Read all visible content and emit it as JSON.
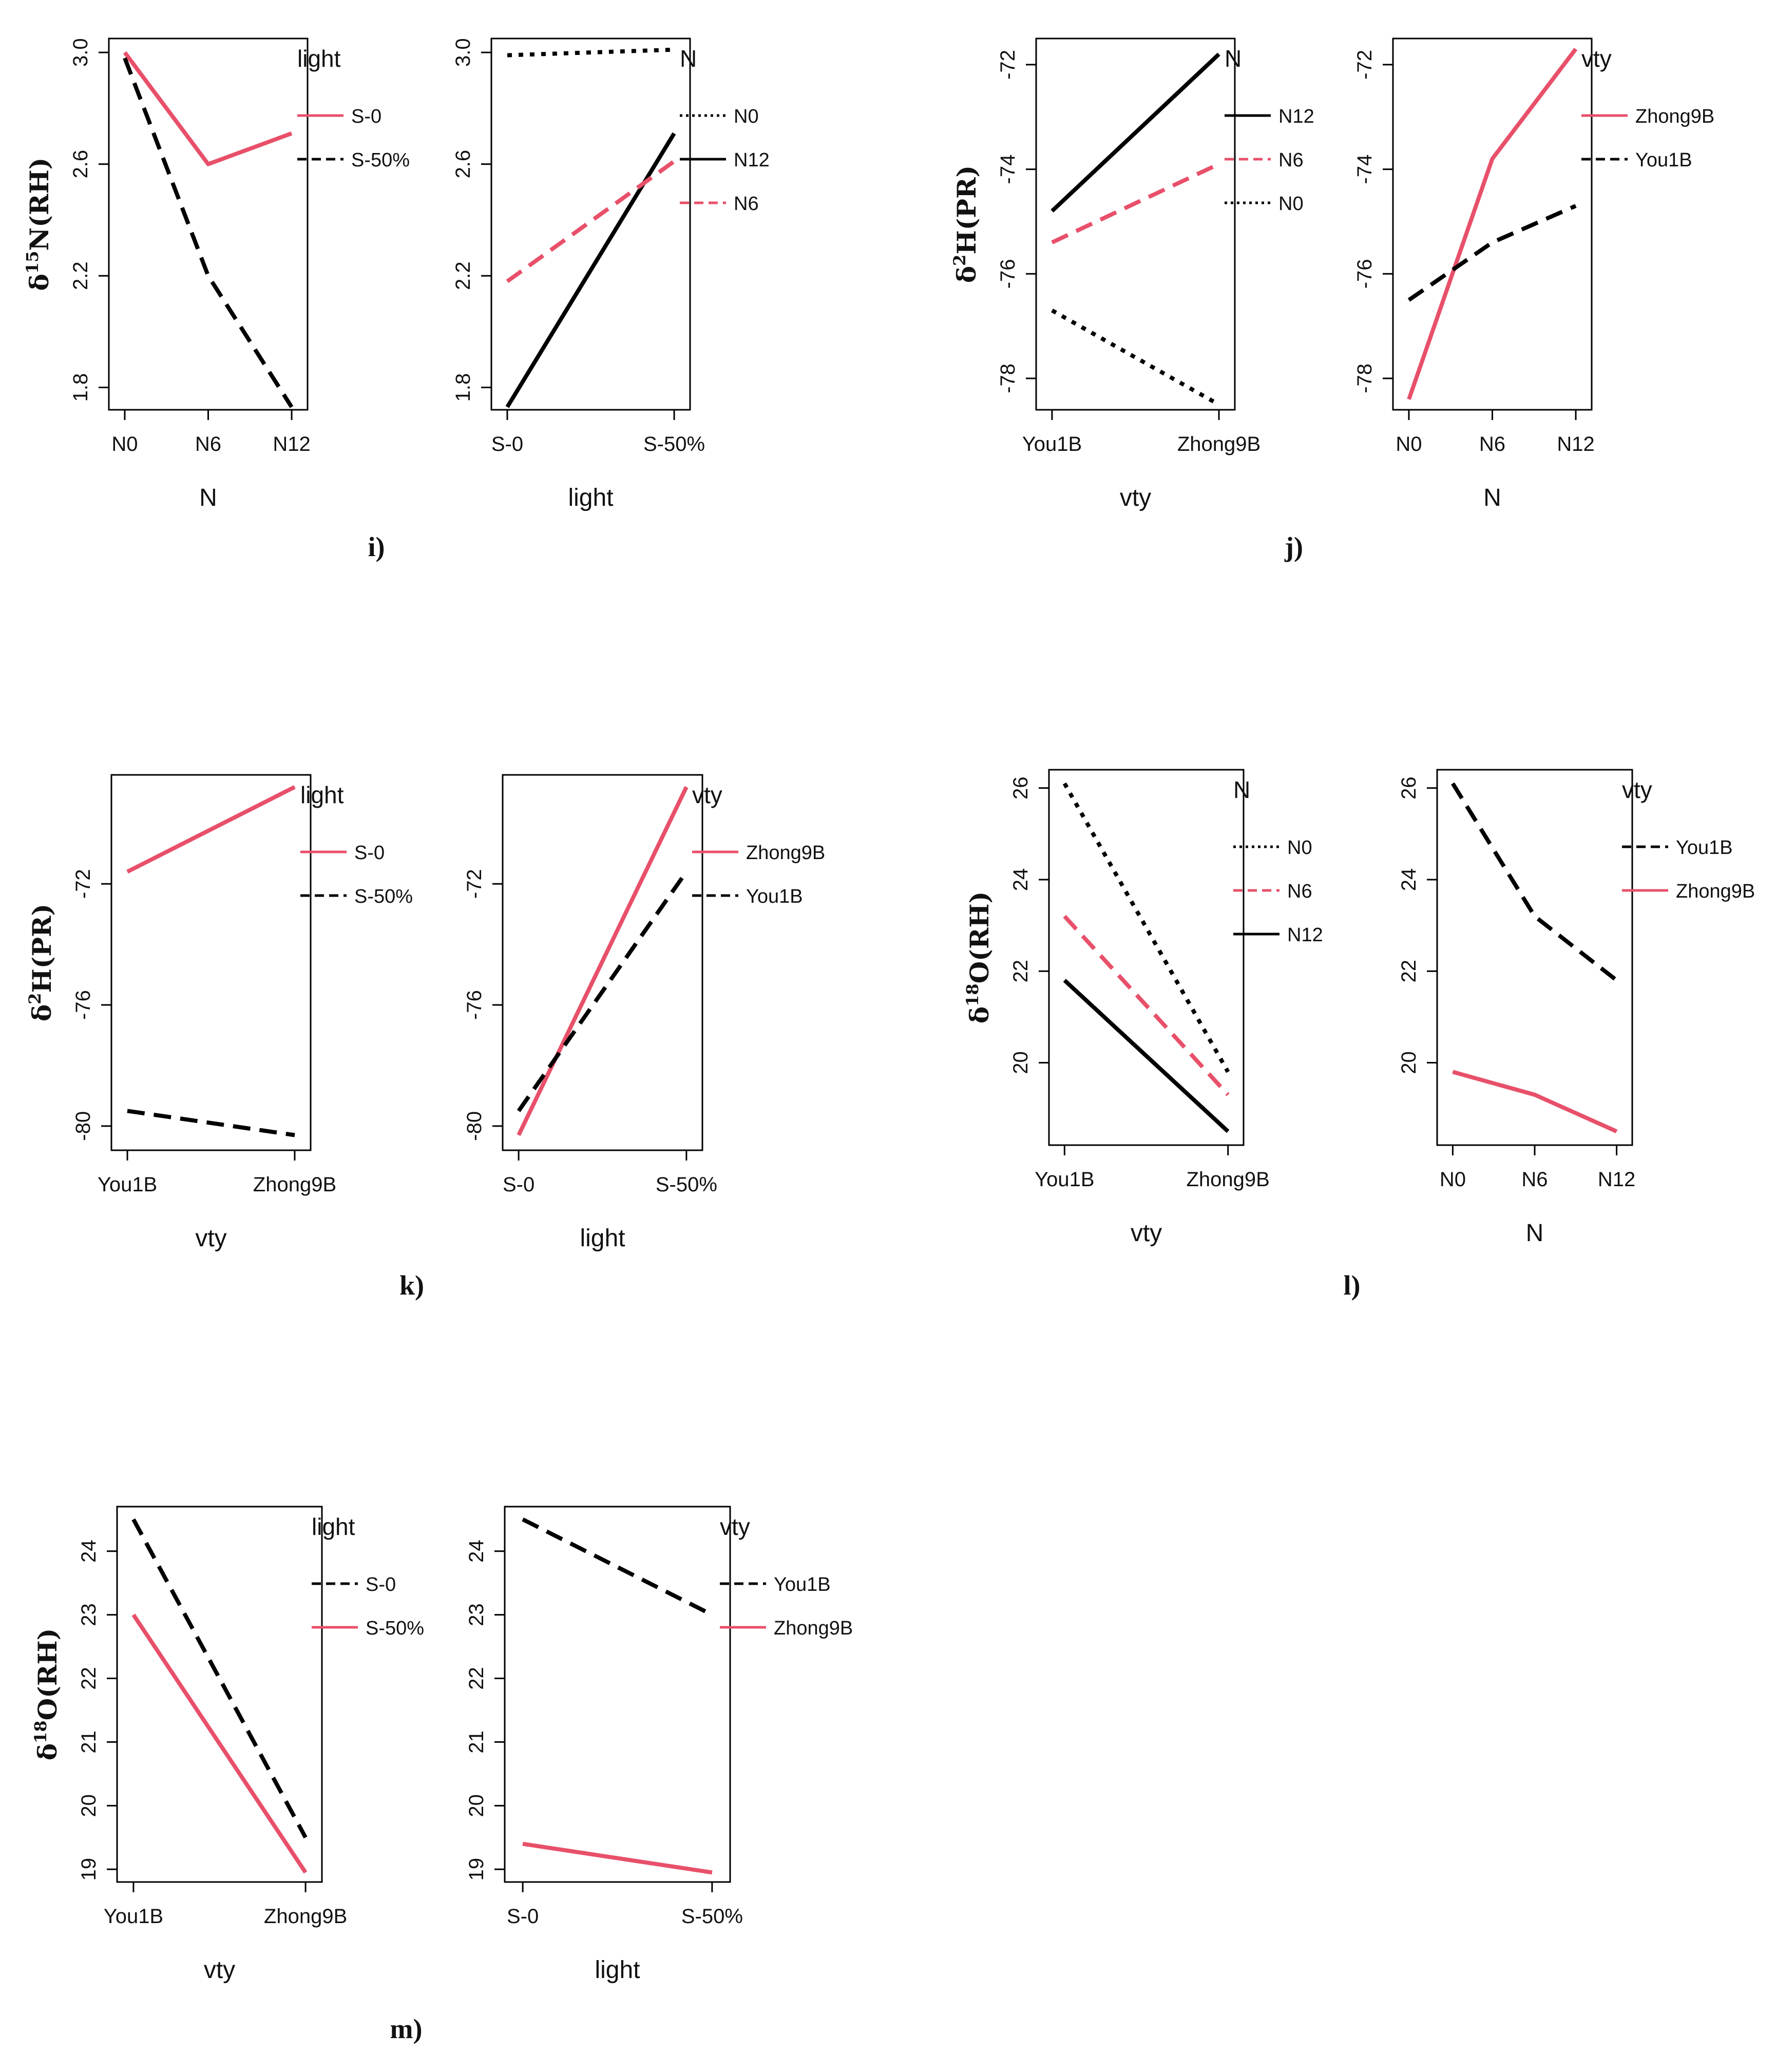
{
  "colors": {
    "black": "#000000",
    "red": "#E8506A"
  },
  "panel_labels": [
    "i)",
    "j)",
    "k)",
    "l)",
    "m)"
  ],
  "chart_data": [
    {
      "type": "line",
      "panel": "i)",
      "xlabel": "N",
      "ylabel": "δ15N(RH)",
      "categories": [
        "N0",
        "N6",
        "N12"
      ],
      "ylim": [
        1.72,
        3.05
      ],
      "yticks": [
        1.8,
        2.2,
        2.6,
        3.0
      ],
      "ytick_labels": [
        "1.8",
        "2.2",
        "2.6",
        "3.0"
      ],
      "legend_title": "light",
      "series": [
        {
          "name": "S-0",
          "color": "red",
          "dash": "solid",
          "values": [
            3.0,
            2.6,
            2.71
          ]
        },
        {
          "name": "S-50%",
          "color": "black",
          "dash": "dashed",
          "values": [
            2.98,
            2.2,
            1.73
          ]
        }
      ]
    },
    {
      "type": "line",
      "panel": "i)",
      "xlabel": "light",
      "ylabel": "",
      "categories": [
        "S-0",
        "S-50%"
      ],
      "ylim": [
        1.72,
        3.05
      ],
      "yticks": [
        1.8,
        2.2,
        2.6,
        3.0
      ],
      "ytick_labels": [
        "1.8",
        "2.2",
        "2.6",
        "3.0"
      ],
      "legend_title": "N",
      "series": [
        {
          "name": "N0",
          "color": "black",
          "dash": "dotted",
          "values": [
            2.99,
            3.01
          ]
        },
        {
          "name": "N12",
          "color": "black",
          "dash": "solid",
          "values": [
            1.73,
            2.71
          ]
        },
        {
          "name": "N6",
          "color": "red",
          "dash": "dashed",
          "values": [
            2.18,
            2.61
          ]
        }
      ]
    },
    {
      "type": "line",
      "panel": "j)",
      "xlabel": "vty",
      "ylabel": "δ2H(PR)",
      "categories": [
        "You1B",
        "Zhong9B"
      ],
      "ylim": [
        -78.6,
        -71.5
      ],
      "yticks": [
        -78,
        -76,
        -74,
        -72
      ],
      "ytick_labels": [
        "-78",
        "-76",
        "-74",
        "-72"
      ],
      "legend_title": "N",
      "series": [
        {
          "name": "N12",
          "color": "black",
          "dash": "solid",
          "values": [
            -74.8,
            -71.8
          ]
        },
        {
          "name": "N6",
          "color": "red",
          "dash": "dashed",
          "values": [
            -75.4,
            -73.9
          ]
        },
        {
          "name": "N0",
          "color": "black",
          "dash": "dotted",
          "values": [
            -76.7,
            -78.5
          ]
        }
      ]
    },
    {
      "type": "line",
      "panel": "j)",
      "xlabel": "N",
      "ylabel": "",
      "categories": [
        "N0",
        "N6",
        "N12"
      ],
      "ylim": [
        -78.6,
        -71.5
      ],
      "yticks": [
        -78,
        -76,
        -74,
        -72
      ],
      "ytick_labels": [
        "-78",
        "-76",
        "-74",
        "-72"
      ],
      "legend_title": "vty",
      "series": [
        {
          "name": "Zhong9B",
          "color": "red",
          "dash": "solid",
          "values": [
            -78.4,
            -73.8,
            -71.7
          ]
        },
        {
          "name": "You1B",
          "color": "black",
          "dash": "dashed",
          "values": [
            -76.5,
            -75.4,
            -74.7
          ]
        }
      ]
    },
    {
      "type": "line",
      "panel": "k)",
      "xlabel": "vty",
      "ylabel": "δ2H(PR)",
      "categories": [
        "You1B",
        "Zhong9B"
      ],
      "ylim": [
        -80.8,
        -68.4
      ],
      "yticks": [
        -80,
        -76,
        -72
      ],
      "ytick_labels": [
        "-80",
        "-76",
        "-72"
      ],
      "legend_title": "light",
      "series": [
        {
          "name": "S-0",
          "color": "red",
          "dash": "solid",
          "values": [
            -71.6,
            -68.8
          ]
        },
        {
          "name": "S-50%",
          "color": "black",
          "dash": "dashed",
          "values": [
            -79.5,
            -80.3
          ]
        }
      ]
    },
    {
      "type": "line",
      "panel": "k)",
      "xlabel": "light",
      "ylabel": "",
      "categories": [
        "S-0",
        "S-50%"
      ],
      "ylim": [
        -80.8,
        -68.4
      ],
      "yticks": [
        -80,
        -76,
        -72
      ],
      "ytick_labels": [
        "-80",
        "-76",
        "-72"
      ],
      "legend_title": "vty",
      "series": [
        {
          "name": "Zhong9B",
          "color": "red",
          "dash": "solid",
          "values": [
            -80.3,
            -68.8
          ]
        },
        {
          "name": "You1B",
          "color": "black",
          "dash": "dashed",
          "values": [
            -79.5,
            -71.6
          ]
        }
      ]
    },
    {
      "type": "line",
      "panel": "l)",
      "xlabel": "vty",
      "ylabel": "δ18O(RH)",
      "categories": [
        "You1B",
        "Zhong9B"
      ],
      "ylim": [
        18.2,
        26.4
      ],
      "yticks": [
        20,
        22,
        24,
        26
      ],
      "ytick_labels": [
        "20",
        "22",
        "24",
        "26"
      ],
      "legend_title": "N",
      "series": [
        {
          "name": "N0",
          "color": "black",
          "dash": "dotted",
          "values": [
            26.1,
            19.8
          ]
        },
        {
          "name": "N6",
          "color": "red",
          "dash": "dashed",
          "values": [
            23.2,
            19.3
          ]
        },
        {
          "name": "N12",
          "color": "black",
          "dash": "solid",
          "values": [
            21.8,
            18.5
          ]
        }
      ]
    },
    {
      "type": "line",
      "panel": "l)",
      "xlabel": "N",
      "ylabel": "",
      "categories": [
        "N0",
        "N6",
        "N12"
      ],
      "ylim": [
        18.2,
        26.4
      ],
      "yticks": [
        20,
        22,
        24,
        26
      ],
      "ytick_labels": [
        "20",
        "22",
        "24",
        "26"
      ],
      "legend_title": "vty",
      "series": [
        {
          "name": "You1B",
          "color": "black",
          "dash": "dashed",
          "values": [
            26.1,
            23.2,
            21.8
          ]
        },
        {
          "name": "Zhong9B",
          "color": "red",
          "dash": "solid",
          "values": [
            19.8,
            19.3,
            18.5
          ]
        }
      ]
    },
    {
      "type": "line",
      "panel": "m)",
      "xlabel": "vty",
      "ylabel": "δ18O(RH)",
      "categories": [
        "You1B",
        "Zhong9B"
      ],
      "ylim": [
        18.8,
        24.7
      ],
      "yticks": [
        19,
        20,
        21,
        22,
        23,
        24
      ],
      "ytick_labels": [
        "19",
        "20",
        "21",
        "22",
        "23",
        "24"
      ],
      "legend_title": "light",
      "series": [
        {
          "name": "S-0",
          "color": "black",
          "dash": "dashed",
          "values": [
            24.5,
            19.5
          ]
        },
        {
          "name": "S-50%",
          "color": "red",
          "dash": "solid",
          "values": [
            23.0,
            18.95
          ]
        }
      ]
    },
    {
      "type": "line",
      "panel": "m)",
      "xlabel": "light",
      "ylabel": "",
      "categories": [
        "S-0",
        "S-50%"
      ],
      "ylim": [
        18.8,
        24.7
      ],
      "yticks": [
        19,
        20,
        21,
        22,
        23,
        24
      ],
      "ytick_labels": [
        "19",
        "20",
        "21",
        "22",
        "23",
        "24"
      ],
      "legend_title": "vty",
      "series": [
        {
          "name": "You1B",
          "color": "black",
          "dash": "dashed",
          "values": [
            24.5,
            23.0
          ]
        },
        {
          "name": "Zhong9B",
          "color": "red",
          "dash": "solid",
          "values": [
            19.4,
            18.95
          ]
        }
      ]
    }
  ]
}
